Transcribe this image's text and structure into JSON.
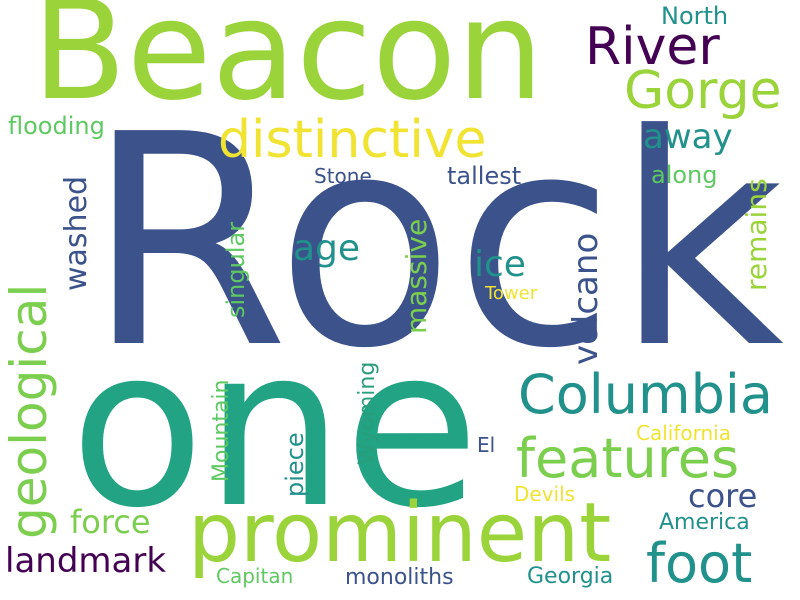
{
  "palette": {
    "dark_purple": "#440154",
    "indigo": "#3b528b",
    "teal": "#21918c",
    "green_teal": "#2a9d7c",
    "green": "#5ec962",
    "lime": "#9ad43a",
    "yellow": "#f0e332"
  },
  "words": [
    {
      "text": "Beacon",
      "color": "#9ad43a"
    },
    {
      "text": "Rock",
      "color": "#3b528b"
    },
    {
      "text": "one",
      "color": "#21a384"
    },
    {
      "text": "prominent",
      "color": "#9ad43a"
    },
    {
      "text": "River",
      "color": "#440154"
    },
    {
      "text": "Gorge",
      "color": "#9ad43a"
    },
    {
      "text": "distinctive",
      "color": "#f0e332"
    },
    {
      "text": "Columbia",
      "color": "#21918c"
    },
    {
      "text": "features",
      "color": "#7cce4e"
    },
    {
      "text": "foot",
      "color": "#21918c"
    },
    {
      "text": "geological",
      "color": "#7cce4e"
    },
    {
      "text": "volcano",
      "color": "#3b528b"
    },
    {
      "text": "landmark",
      "color": "#440154"
    },
    {
      "text": "away",
      "color": "#21918c"
    },
    {
      "text": "age",
      "color": "#21918c"
    },
    {
      "text": "ice",
      "color": "#21918c"
    },
    {
      "text": "core",
      "color": "#3b528b"
    },
    {
      "text": "force",
      "color": "#7cce4e"
    },
    {
      "text": "massive",
      "color": "#7cce4e"
    },
    {
      "text": "washed",
      "color": "#3b528b"
    },
    {
      "text": "remains",
      "color": "#9ad43a"
    },
    {
      "text": "North",
      "color": "#21918c"
    },
    {
      "text": "flooding",
      "color": "#5ec962"
    },
    {
      "text": "tallest",
      "color": "#3b528b"
    },
    {
      "text": "Stone",
      "color": "#3b528b"
    },
    {
      "text": "along",
      "color": "#5ec962"
    },
    {
      "text": "singular",
      "color": "#5ec962"
    },
    {
      "text": "Tower",
      "color": "#f0e332"
    },
    {
      "text": "Mountain",
      "color": "#5ec962"
    },
    {
      "text": "piece",
      "color": "#21918c"
    },
    {
      "text": "Wyoming",
      "color": "#2a9d7c"
    },
    {
      "text": "El",
      "color": "#3b528b"
    },
    {
      "text": "California",
      "color": "#f0e332"
    },
    {
      "text": "Devils",
      "color": "#f0e332"
    },
    {
      "text": "America",
      "color": "#21918c"
    },
    {
      "text": "monoliths",
      "color": "#3b528b"
    },
    {
      "text": "Georgia",
      "color": "#21918c"
    },
    {
      "text": "Capitan",
      "color": "#5ec962"
    }
  ]
}
